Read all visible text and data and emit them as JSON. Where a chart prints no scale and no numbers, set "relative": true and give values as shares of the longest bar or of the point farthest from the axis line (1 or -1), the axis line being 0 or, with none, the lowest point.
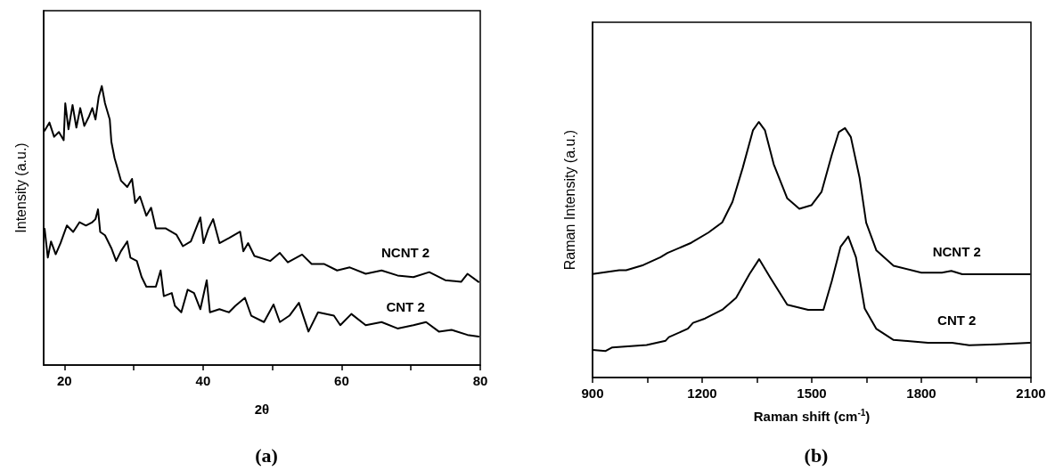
{
  "chart_data": [
    {
      "type": "line",
      "title": "(a)",
      "xlabel": "2θ",
      "ylabel": "Intensity (a.u.)",
      "relative": true,
      "marker": "none",
      "xlim": [
        17,
        80
      ],
      "xticks": [
        20,
        {
          "value": 30,
          "label": null
        },
        40,
        {
          "value": 50,
          "label": null
        },
        60,
        {
          "value": 70,
          "label": null
        },
        80
      ],
      "series": [
        {
          "name": "NCNT 2",
          "color": "#000000",
          "x": [
            17.14,
            17.83,
            18.51,
            19.2,
            19.89,
            20.12,
            20.58,
            21.17,
            21.72,
            22.28,
            22.87,
            23.56,
            24.02,
            24.48,
            24.94,
            25.39,
            25.85,
            26.54,
            26.77,
            27.23,
            28.15,
            29.06,
            29.75,
            30.21,
            30.9,
            31.82,
            32.5,
            33.19,
            34.57,
            36.17,
            37.09,
            38.24,
            39.61,
            40.07,
            40.76,
            41.45,
            42.37,
            43.74,
            45.35,
            45.81,
            46.5,
            47.41,
            49.71,
            51.08,
            52.23,
            54.29,
            55.67,
            57.5,
            59.34,
            61.17,
            63.47,
            65.76,
            68.06,
            70.35,
            72.64,
            74.94,
            77.23,
            78.15,
            79.75
          ],
          "values": [
            0.84,
            0.869,
            0.818,
            0.835,
            0.806,
            0.938,
            0.845,
            0.932,
            0.851,
            0.921,
            0.857,
            0.892,
            0.921,
            0.88,
            0.961,
            1.0,
            0.938,
            0.88,
            0.8,
            0.742,
            0.661,
            0.638,
            0.667,
            0.581,
            0.604,
            0.535,
            0.564,
            0.49,
            0.49,
            0.467,
            0.426,
            0.443,
            0.529,
            0.437,
            0.488,
            0.523,
            0.437,
            0.455,
            0.478,
            0.408,
            0.437,
            0.391,
            0.373,
            0.402,
            0.368,
            0.396,
            0.362,
            0.362,
            0.339,
            0.35,
            0.327,
            0.339,
            0.321,
            0.315,
            0.333,
            0.304,
            0.298,
            0.327,
            0.298
          ]
        },
        {
          "name": "CNT 2",
          "color": "#000000",
          "x": [
            17.14,
            17.6,
            18.06,
            18.74,
            19.43,
            20.35,
            21.26,
            22.18,
            23.1,
            24.02,
            24.48,
            24.84,
            25.16,
            25.85,
            26.77,
            27.46,
            28.15,
            29.06,
            29.52,
            30.44,
            31.13,
            31.82,
            33.19,
            33.88,
            34.34,
            35.49,
            35.94,
            36.86,
            37.78,
            38.7,
            39.61,
            40.53,
            40.99,
            42.37,
            43.74,
            44.66,
            46.04,
            46.95,
            48.79,
            50.17,
            51.08,
            52.46,
            53.83,
            55.21,
            56.59,
            58.88,
            59.8,
            61.4,
            63.47,
            65.76,
            68.06,
            70.35,
            72.18,
            74.02,
            75.85,
            78.15,
            79.75
          ],
          "values": [
            0.488,
            0.385,
            0.443,
            0.397,
            0.437,
            0.5,
            0.477,
            0.512,
            0.5,
            0.512,
            0.523,
            0.558,
            0.477,
            0.465,
            0.419,
            0.373,
            0.408,
            0.443,
            0.385,
            0.373,
            0.316,
            0.281,
            0.281,
            0.339,
            0.247,
            0.258,
            0.212,
            0.189,
            0.27,
            0.258,
            0.2,
            0.304,
            0.189,
            0.2,
            0.189,
            0.212,
            0.241,
            0.177,
            0.154,
            0.217,
            0.154,
            0.177,
            0.223,
            0.12,
            0.189,
            0.177,
            0.143,
            0.183,
            0.143,
            0.154,
            0.131,
            0.143,
            0.154,
            0.12,
            0.126,
            0.108,
            0.102
          ]
        }
      ]
    },
    {
      "type": "line",
      "title": "(b)",
      "xlabel": "Raman shift (cm$^{-1}$)",
      "ylabel": "Raman Intensity (a.u.)",
      "relative": true,
      "marker": "none",
      "xlim": [
        900,
        2100
      ],
      "xticks": [
        900,
        {
          "value": 1050,
          "label": null
        },
        1200,
        {
          "value": 1350,
          "label": null
        },
        1500,
        {
          "value": 1650,
          "label": null
        },
        1800,
        {
          "value": 1950,
          "label": null
        },
        2100
      ],
      "series": [
        {
          "name": "NCNT 2",
          "color": "#000000",
          "x": [
            900,
            973,
            992,
            1039,
            1086,
            1105,
            1170,
            1217,
            1255,
            1283,
            1311,
            1339,
            1355,
            1372,
            1396,
            1433,
            1466,
            1499,
            1527,
            1555,
            1574,
            1591,
            1607,
            1631,
            1649,
            1677,
            1724,
            1800,
            1856,
            1882,
            1912,
            2006,
            2097
          ],
          "values": [
            0.405,
            0.42,
            0.42,
            0.44,
            0.471,
            0.487,
            0.527,
            0.567,
            0.607,
            0.687,
            0.82,
            0.967,
            1.0,
            0.967,
            0.834,
            0.701,
            0.66,
            0.674,
            0.727,
            0.872,
            0.96,
            0.976,
            0.941,
            0.781,
            0.606,
            0.497,
            0.437,
            0.41,
            0.41,
            0.417,
            0.404,
            0.404,
            0.404
          ]
        },
        {
          "name": "CNT 2",
          "color": "#000000",
          "x": [
            900,
            936,
            954,
            1048,
            1100,
            1109,
            1161,
            1175,
            1208,
            1255,
            1293,
            1330,
            1356,
            1386,
            1433,
            1490,
            1532,
            1555,
            1579,
            1600,
            1621,
            1645,
            1677,
            1724,
            1762,
            1818,
            1884,
            1931,
            2006,
            2097
          ],
          "values": [
            0.108,
            0.104,
            0.118,
            0.127,
            0.144,
            0.158,
            0.191,
            0.214,
            0.231,
            0.265,
            0.312,
            0.406,
            0.463,
            0.392,
            0.285,
            0.265,
            0.265,
            0.378,
            0.512,
            0.552,
            0.471,
            0.27,
            0.19,
            0.147,
            0.143,
            0.136,
            0.136,
            0.126,
            0.13,
            0.136
          ]
        }
      ]
    }
  ]
}
